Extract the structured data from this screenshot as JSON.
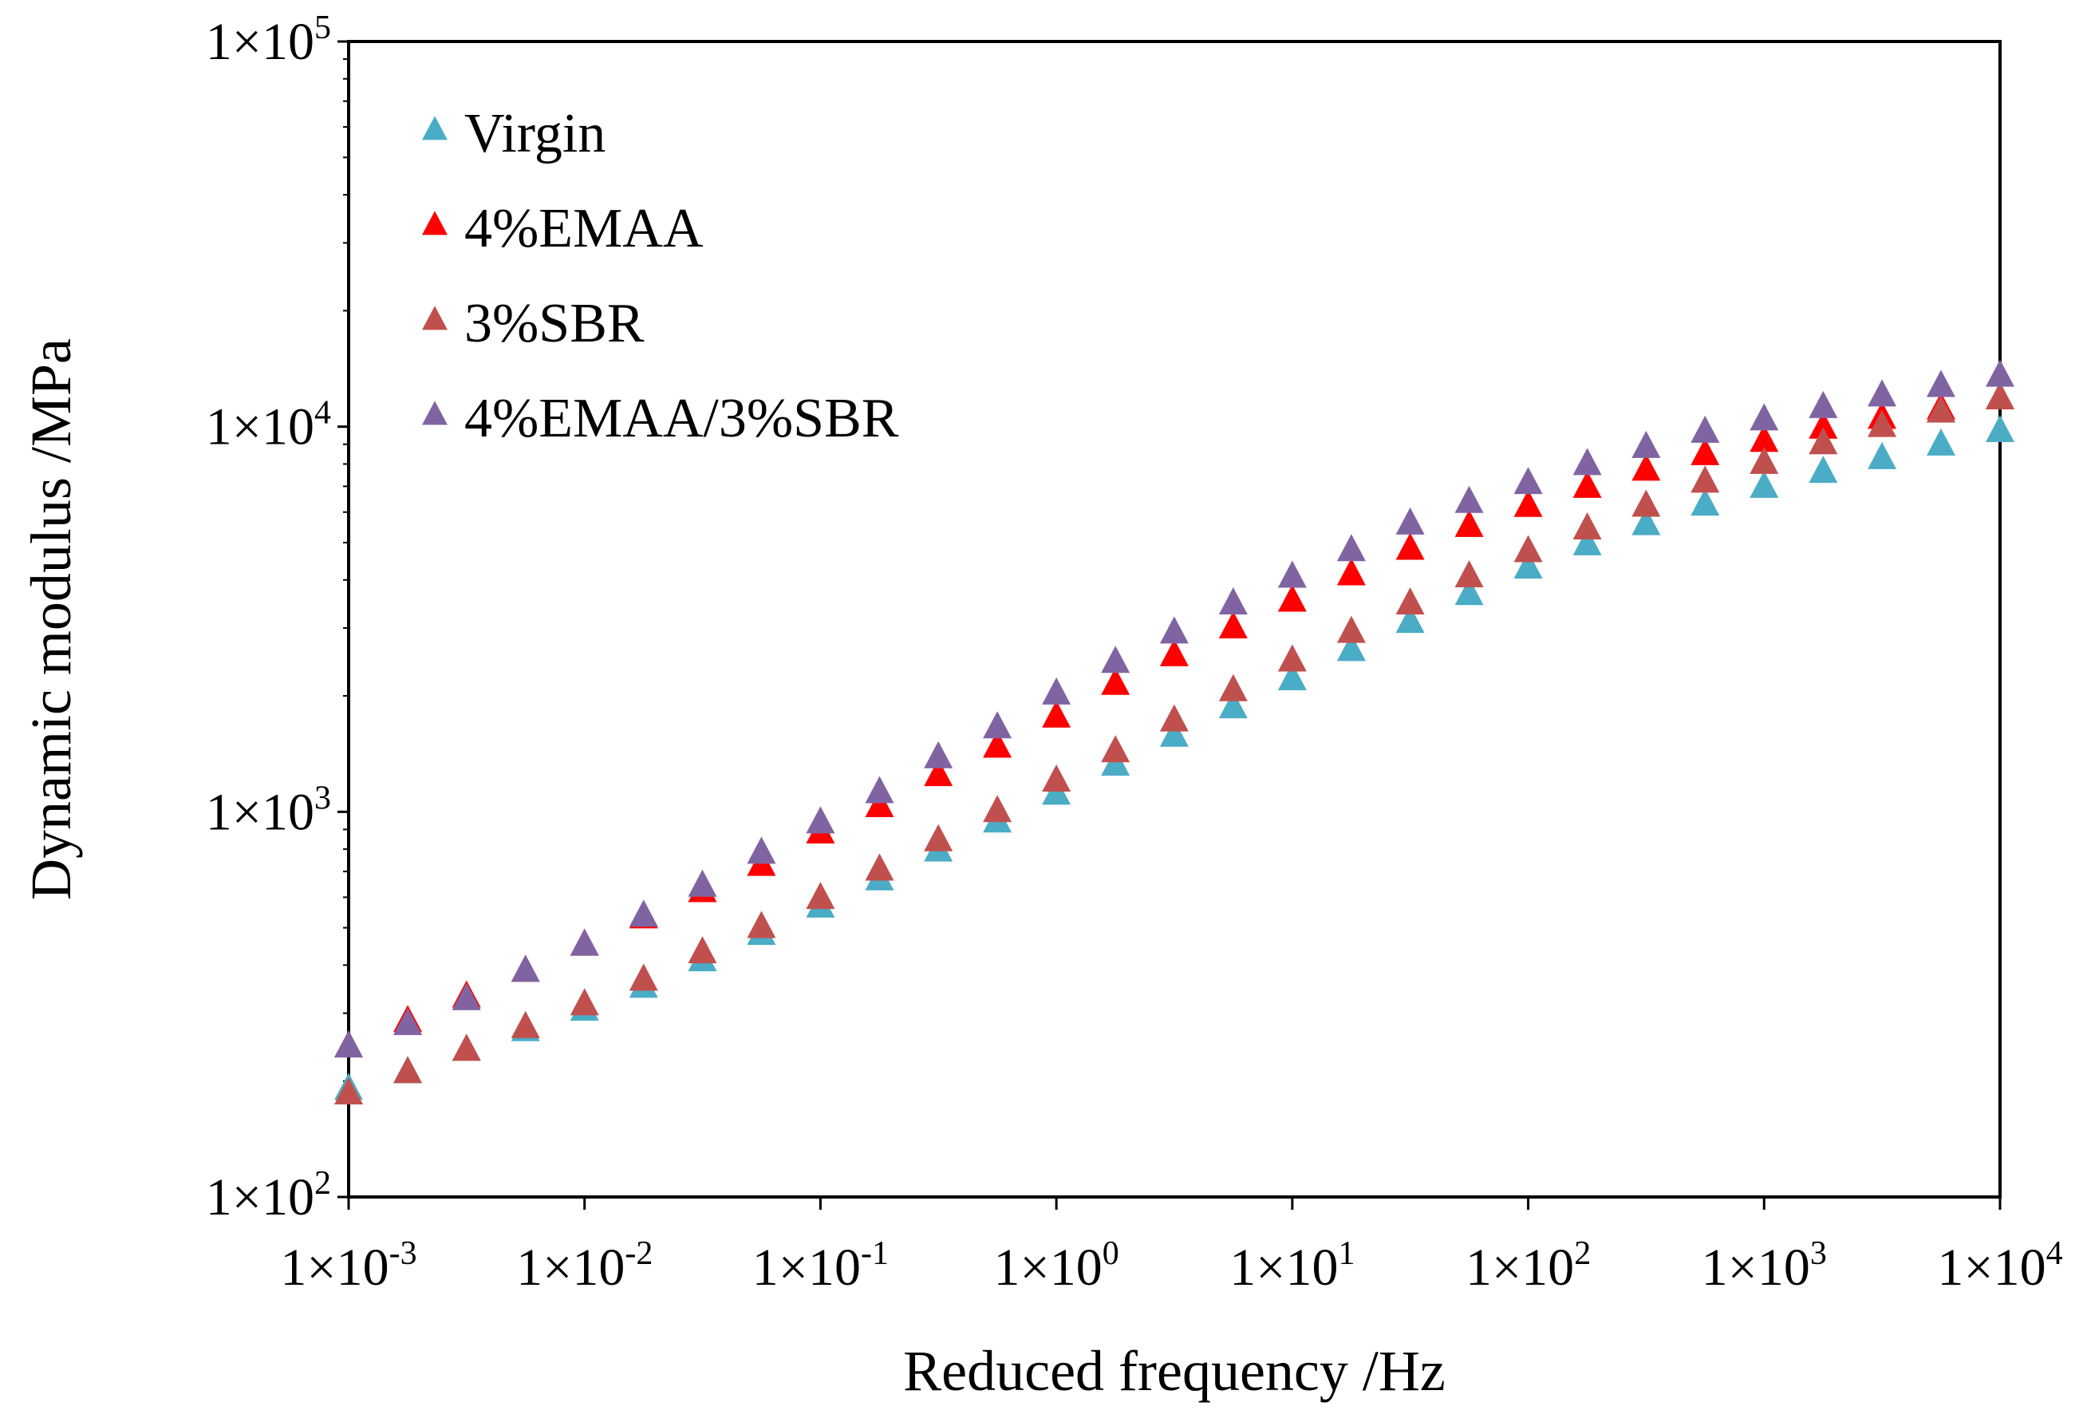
{
  "chart_data": {
    "type": "scatter",
    "title": "",
    "xlabel": "Reduced frequency /Hz",
    "ylabel": "Dynamic modulus /MPa",
    "xscale": "log",
    "yscale": "log",
    "xlim": [
      0.001,
      10000
    ],
    "ylim": [
      100,
      100000
    ],
    "grid": false,
    "legend_position": "top-left",
    "xticks": [
      {
        "value": 0.001,
        "base": "1×10",
        "exp": "-3"
      },
      {
        "value": 0.01,
        "base": "1×10",
        "exp": "-2"
      },
      {
        "value": 0.1,
        "base": "1×10",
        "exp": "-1"
      },
      {
        "value": 1,
        "base": "1×10",
        "exp": "0"
      },
      {
        "value": 10,
        "base": "1×10",
        "exp": "1"
      },
      {
        "value": 100,
        "base": "1×10",
        "exp": "2"
      },
      {
        "value": 1000,
        "base": "1×10",
        "exp": "3"
      },
      {
        "value": 10000,
        "base": "1×10",
        "exp": "4"
      }
    ],
    "yticks": [
      {
        "value": 100,
        "base": "1×10",
        "exp": "2"
      },
      {
        "value": 1000,
        "base": "1×10",
        "exp": "3"
      },
      {
        "value": 10000,
        "base": "1×10",
        "exp": "4"
      },
      {
        "value": 100000,
        "base": "1×10",
        "exp": "5"
      }
    ],
    "x": [
      0.001,
      0.00178,
      0.00316,
      0.00562,
      0.01,
      0.0178,
      0.0316,
      0.0562,
      0.1,
      0.178,
      0.316,
      0.562,
      1,
      1.78,
      3.16,
      5.62,
      10,
      17.8,
      31.6,
      56.2,
      100,
      178,
      316,
      562,
      1000,
      1780,
      3160,
      5620,
      10000
    ],
    "series": [
      {
        "name": "Virgin",
        "color": "#4BACC6",
        "values": [
          190,
          210,
          240,
          270,
          305,
          350,
          410,
          480,
          565,
          665,
          790,
          940,
          1110,
          1320,
          1570,
          1860,
          2200,
          2620,
          3100,
          3660,
          4290,
          4930,
          5560,
          6250,
          6950,
          7600,
          8250,
          8950,
          9700
        ]
      },
      {
        "name": "4%EMAA",
        "color": "#FF0000",
        "values": [
          245,
          285,
          330,
          385,
          450,
          530,
          620,
          725,
          880,
          1030,
          1240,
          1470,
          1760,
          2140,
          2540,
          3000,
          3520,
          4120,
          4800,
          5500,
          6200,
          6950,
          7700,
          8450,
          9150,
          9900,
          10500,
          11100,
          11800
        ]
      },
      {
        "name": "3%SBR",
        "color": "#C0504D",
        "values": [
          185,
          210,
          240,
          275,
          315,
          365,
          430,
          500,
          595,
          705,
          840,
          1000,
          1200,
          1430,
          1720,
          2060,
          2460,
          2920,
          3460,
          4070,
          4730,
          5420,
          6210,
          7170,
          8020,
          9020,
          10000,
          10900,
          11800
        ]
      },
      {
        "name": "4%EMAA/3%SBR",
        "color": "#8064A2",
        "values": [
          245,
          280,
          325,
          385,
          450,
          535,
          640,
          780,
          935,
          1120,
          1380,
          1650,
          2020,
          2440,
          2910,
          3460,
          4060,
          4760,
          5580,
          6350,
          7110,
          7960,
          8820,
          9660,
          10400,
          11200,
          12000,
          12700,
          13500
        ]
      }
    ]
  }
}
